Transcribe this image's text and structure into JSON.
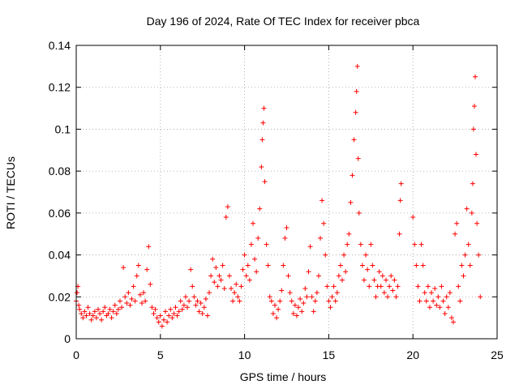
{
  "chart_data": {
    "type": "scatter",
    "title": "Day 196 of 2024, Rate Of TEC Index for receiver pbca",
    "xlabel": "GPS time / hours",
    "ylabel": "ROTI / TECUs",
    "xlim": [
      0,
      25
    ],
    "ylim": [
      0,
      0.14
    ],
    "xticks": [
      "0",
      "5",
      "10",
      "15",
      "20",
      "25"
    ],
    "yticks": [
      "0",
      "0.02",
      "0.04",
      "0.06",
      "0.08",
      "0.1",
      "0.12",
      "0.14"
    ],
    "grid": true,
    "marker": "+",
    "color": "#ff0000",
    "series": [
      {
        "name": "ROTI",
        "points": [
          [
            0.0,
            0.018
          ],
          [
            0.05,
            0.022
          ],
          [
            0.1,
            0.025
          ],
          [
            0.15,
            0.016
          ],
          [
            0.2,
            0.014
          ],
          [
            0.3,
            0.012
          ],
          [
            0.4,
            0.01
          ],
          [
            0.5,
            0.013
          ],
          [
            0.6,
            0.011
          ],
          [
            0.7,
            0.015
          ],
          [
            0.8,
            0.012
          ],
          [
            0.9,
            0.009
          ],
          [
            1.0,
            0.011
          ],
          [
            1.1,
            0.013
          ],
          [
            1.2,
            0.01
          ],
          [
            1.3,
            0.014
          ],
          [
            1.4,
            0.012
          ],
          [
            1.5,
            0.009
          ],
          [
            1.6,
            0.013
          ],
          [
            1.7,
            0.015
          ],
          [
            1.8,
            0.011
          ],
          [
            1.9,
            0.012
          ],
          [
            2.0,
            0.014
          ],
          [
            2.1,
            0.01
          ],
          [
            2.2,
            0.013
          ],
          [
            2.3,
            0.016
          ],
          [
            2.4,
            0.012
          ],
          [
            2.5,
            0.014
          ],
          [
            2.6,
            0.018
          ],
          [
            2.7,
            0.015
          ],
          [
            2.8,
            0.034
          ],
          [
            2.9,
            0.02
          ],
          [
            3.0,
            0.017
          ],
          [
            3.1,
            0.022
          ],
          [
            3.2,
            0.016
          ],
          [
            3.3,
            0.019
          ],
          [
            3.4,
            0.025
          ],
          [
            3.5,
            0.018
          ],
          [
            3.6,
            0.03
          ],
          [
            3.7,
            0.035
          ],
          [
            3.8,
            0.021
          ],
          [
            3.9,
            0.017
          ],
          [
            4.0,
            0.022
          ],
          [
            4.1,
            0.018
          ],
          [
            4.2,
            0.033
          ],
          [
            4.3,
            0.044
          ],
          [
            4.4,
            0.026
          ],
          [
            4.5,
            0.015
          ],
          [
            4.6,
            0.012
          ],
          [
            4.7,
            0.014
          ],
          [
            4.8,
            0.01
          ],
          [
            4.9,
            0.008
          ],
          [
            5.0,
            0.011
          ],
          [
            5.1,
            0.006
          ],
          [
            5.2,
            0.009
          ],
          [
            5.3,
            0.013
          ],
          [
            5.4,
            0.008
          ],
          [
            5.5,
            0.011
          ],
          [
            5.6,
            0.014
          ],
          [
            5.7,
            0.01
          ],
          [
            5.8,
            0.012
          ],
          [
            5.9,
            0.015
          ],
          [
            6.0,
            0.011
          ],
          [
            6.1,
            0.013
          ],
          [
            6.2,
            0.018
          ],
          [
            6.3,
            0.014
          ],
          [
            6.4,
            0.016
          ],
          [
            6.5,
            0.02
          ],
          [
            6.6,
            0.015
          ],
          [
            6.7,
            0.018
          ],
          [
            6.8,
            0.033
          ],
          [
            6.9,
            0.025
          ],
          [
            7.0,
            0.02
          ],
          [
            7.1,
            0.016
          ],
          [
            7.2,
            0.018
          ],
          [
            7.3,
            0.013
          ],
          [
            7.4,
            0.017
          ],
          [
            7.5,
            0.012
          ],
          [
            7.6,
            0.015
          ],
          [
            7.7,
            0.019
          ],
          [
            7.8,
            0.011
          ],
          [
            7.9,
            0.022
          ],
          [
            8.0,
            0.03
          ],
          [
            8.1,
            0.038
          ],
          [
            8.2,
            0.027
          ],
          [
            8.3,
            0.034
          ],
          [
            8.4,
            0.025
          ],
          [
            8.5,
            0.03
          ],
          [
            8.6,
            0.028
          ],
          [
            8.7,
            0.035
          ],
          [
            8.8,
            0.024
          ],
          [
            8.9,
            0.058
          ],
          [
            9.0,
            0.063
          ],
          [
            9.1,
            0.03
          ],
          [
            9.2,
            0.024
          ],
          [
            9.3,
            0.018
          ],
          [
            9.4,
            0.022
          ],
          [
            9.5,
            0.026
          ],
          [
            9.6,
            0.02
          ],
          [
            9.7,
            0.018
          ],
          [
            9.8,
            0.025
          ],
          [
            9.9,
            0.033
          ],
          [
            10.0,
            0.04
          ],
          [
            10.1,
            0.03
          ],
          [
            10.2,
            0.035
          ],
          [
            10.3,
            0.028
          ],
          [
            10.4,
            0.045
          ],
          [
            10.5,
            0.055
          ],
          [
            10.6,
            0.038
          ],
          [
            10.7,
            0.032
          ],
          [
            10.8,
            0.048
          ],
          [
            10.9,
            0.062
          ],
          [
            11.0,
            0.082
          ],
          [
            11.05,
            0.095
          ],
          [
            11.1,
            0.103
          ],
          [
            11.15,
            0.11
          ],
          [
            11.2,
            0.075
          ],
          [
            11.3,
            0.045
          ],
          [
            11.4,
            0.035
          ],
          [
            11.5,
            0.02
          ],
          [
            11.6,
            0.018
          ],
          [
            11.7,
            0.012
          ],
          [
            11.8,
            0.016
          ],
          [
            11.9,
            0.01
          ],
          [
            12.0,
            0.014
          ],
          [
            12.1,
            0.018
          ],
          [
            12.2,
            0.023
          ],
          [
            12.3,
            0.035
          ],
          [
            12.4,
            0.048
          ],
          [
            12.5,
            0.053
          ],
          [
            12.6,
            0.03
          ],
          [
            12.7,
            0.022
          ],
          [
            12.8,
            0.018
          ],
          [
            12.9,
            0.012
          ],
          [
            13.0,
            0.016
          ],
          [
            13.1,
            0.011
          ],
          [
            13.2,
            0.015
          ],
          [
            13.3,
            0.019
          ],
          [
            13.4,
            0.013
          ],
          [
            13.5,
            0.017
          ],
          [
            13.6,
            0.024
          ],
          [
            13.7,
            0.02
          ],
          [
            13.8,
            0.032
          ],
          [
            13.9,
            0.044
          ],
          [
            14.0,
            0.02
          ],
          [
            14.1,
            0.013
          ],
          [
            14.2,
            0.018
          ],
          [
            14.3,
            0.022
          ],
          [
            14.4,
            0.03
          ],
          [
            14.5,
            0.048
          ],
          [
            14.6,
            0.066
          ],
          [
            14.7,
            0.055
          ],
          [
            14.8,
            0.04
          ],
          [
            14.9,
            0.025
          ],
          [
            15.0,
            0.018
          ],
          [
            15.1,
            0.015
          ],
          [
            15.2,
            0.02
          ],
          [
            15.3,
            0.025
          ],
          [
            15.4,
            0.018
          ],
          [
            15.5,
            0.022
          ],
          [
            15.6,
            0.03
          ],
          [
            15.7,
            0.035
          ],
          [
            15.8,
            0.028
          ],
          [
            15.9,
            0.04
          ],
          [
            16.0,
            0.032
          ],
          [
            16.1,
            0.045
          ],
          [
            16.2,
            0.05
          ],
          [
            16.3,
            0.065
          ],
          [
            16.4,
            0.078
          ],
          [
            16.5,
            0.095
          ],
          [
            16.6,
            0.108
          ],
          [
            16.65,
            0.118
          ],
          [
            16.7,
            0.13
          ],
          [
            16.75,
            0.086
          ],
          [
            16.8,
            0.06
          ],
          [
            16.9,
            0.045
          ],
          [
            17.0,
            0.035
          ],
          [
            17.1,
            0.028
          ],
          [
            17.2,
            0.04
          ],
          [
            17.3,
            0.033
          ],
          [
            17.4,
            0.025
          ],
          [
            17.5,
            0.045
          ],
          [
            17.6,
            0.035
          ],
          [
            17.7,
            0.028
          ],
          [
            17.8,
            0.02
          ],
          [
            17.9,
            0.025
          ],
          [
            18.0,
            0.032
          ],
          [
            18.1,
            0.025
          ],
          [
            18.2,
            0.03
          ],
          [
            18.3,
            0.022
          ],
          [
            18.4,
            0.028
          ],
          [
            18.5,
            0.02
          ],
          [
            18.6,
            0.025
          ],
          [
            18.7,
            0.03
          ],
          [
            18.8,
            0.023
          ],
          [
            18.9,
            0.028
          ],
          [
            19.0,
            0.02
          ],
          [
            19.1,
            0.025
          ],
          [
            19.2,
            0.05
          ],
          [
            19.25,
            0.066
          ],
          [
            19.3,
            0.074
          ],
          [
            20.0,
            0.058
          ],
          [
            20.1,
            0.045
          ],
          [
            20.2,
            0.035
          ],
          [
            20.3,
            0.025
          ],
          [
            20.4,
            0.018
          ],
          [
            20.5,
            0.045
          ],
          [
            20.6,
            0.035
          ],
          [
            20.7,
            0.022
          ],
          [
            20.8,
            0.018
          ],
          [
            20.9,
            0.025
          ],
          [
            21.0,
            0.015
          ],
          [
            21.1,
            0.022
          ],
          [
            21.2,
            0.018
          ],
          [
            21.3,
            0.024
          ],
          [
            21.4,
            0.016
          ],
          [
            21.5,
            0.02
          ],
          [
            21.6,
            0.015
          ],
          [
            21.7,
            0.025
          ],
          [
            21.8,
            0.018
          ],
          [
            21.9,
            0.012
          ],
          [
            22.0,
            0.02
          ],
          [
            22.1,
            0.015
          ],
          [
            22.2,
            0.022
          ],
          [
            22.3,
            0.01
          ],
          [
            22.4,
            0.008
          ],
          [
            22.5,
            0.05
          ],
          [
            22.6,
            0.055
          ],
          [
            22.7,
            0.025
          ],
          [
            22.8,
            0.018
          ],
          [
            22.9,
            0.035
          ],
          [
            23.0,
            0.03
          ],
          [
            23.1,
            0.04
          ],
          [
            23.2,
            0.062
          ],
          [
            23.3,
            0.045
          ],
          [
            23.4,
            0.035
          ],
          [
            23.5,
            0.06
          ],
          [
            23.55,
            0.074
          ],
          [
            23.6,
            0.1
          ],
          [
            23.65,
            0.111
          ],
          [
            23.7,
            0.125
          ],
          [
            23.75,
            0.088
          ],
          [
            23.8,
            0.055
          ],
          [
            23.9,
            0.04
          ],
          [
            24.0,
            0.02
          ]
        ]
      }
    ]
  }
}
